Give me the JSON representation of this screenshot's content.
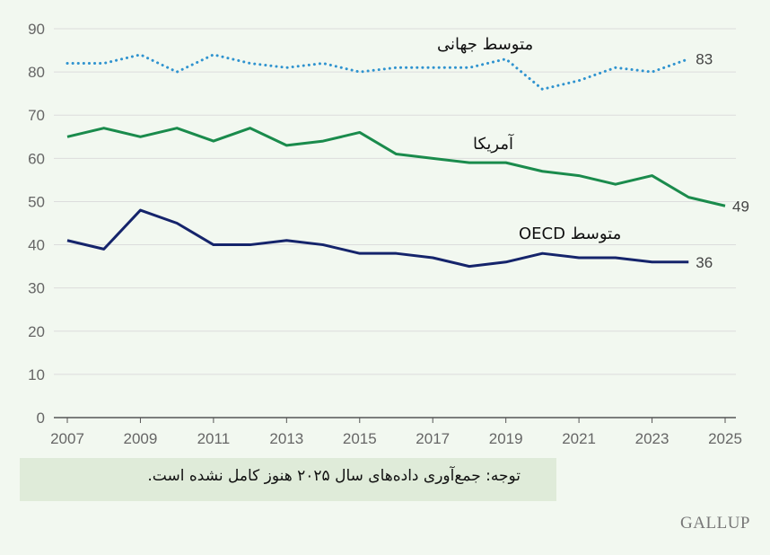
{
  "chart_data": {
    "type": "line",
    "title": "",
    "xlabel": "",
    "ylabel": "",
    "ylim": [
      0,
      90
    ],
    "xlim": [
      2007,
      2025
    ],
    "yticks": [
      "0",
      "10",
      "20",
      "30",
      "40",
      "50",
      "60",
      "70",
      "80",
      "90"
    ],
    "xticks": [
      "2007",
      "2009",
      "2011",
      "2013",
      "2015",
      "2017",
      "2019",
      "2021",
      "2023",
      "2025"
    ],
    "grid": true,
    "series": [
      {
        "name": "متوسط جهانی",
        "style": "dotted",
        "color": "#2f93cf",
        "x": [
          2007,
          2008,
          2009,
          2010,
          2011,
          2012,
          2013,
          2014,
          2015,
          2016,
          2017,
          2018,
          2019,
          2020,
          2021,
          2022,
          2023,
          2024
        ],
        "values": [
          82,
          82,
          84,
          80,
          84,
          82,
          81,
          82,
          80,
          81,
          81,
          81,
          83,
          76,
          78,
          81,
          80,
          83
        ],
        "end_label": "83"
      },
      {
        "name": "آمریکا",
        "style": "solid",
        "color": "#1a8b4c",
        "x": [
          2007,
          2008,
          2009,
          2010,
          2011,
          2012,
          2013,
          2014,
          2015,
          2016,
          2017,
          2018,
          2019,
          2020,
          2021,
          2022,
          2023,
          2024,
          2025
        ],
        "values": [
          65,
          67,
          65,
          67,
          64,
          67,
          63,
          64,
          66,
          61,
          60,
          59,
          59,
          57,
          56,
          54,
          56,
          51,
          49
        ],
        "end_label": "49"
      },
      {
        "name": "متوسط OECD",
        "style": "solid",
        "color": "#15246b",
        "x": [
          2007,
          2008,
          2009,
          2010,
          2011,
          2012,
          2013,
          2014,
          2015,
          2016,
          2017,
          2018,
          2019,
          2020,
          2021,
          2022,
          2023,
          2024
        ],
        "values": [
          41,
          39,
          48,
          45,
          40,
          40,
          41,
          40,
          38,
          38,
          37,
          35,
          36,
          38,
          37,
          37,
          36,
          36
        ],
        "end_label": "36"
      }
    ]
  },
  "note": "توجه: جمع‌آوری داده‌های سال ۲۰۲۵ هنوز کامل نشده است.",
  "logo": "GALLUP"
}
